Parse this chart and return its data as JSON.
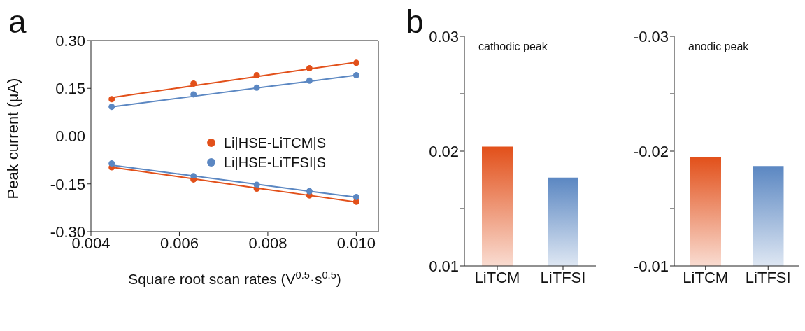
{
  "chart_data": [
    {
      "type": "scatter",
      "xlabel": "Square root scan rates (V$^{0.5}$·s$^{0.5}$)",
      "ylabel": "Peak current (μA)",
      "annotations": [
        "a"
      ],
      "legend": "right",
      "marker": "circle",
      "xlim": [
        0.004,
        0.0105
      ],
      "xticks": [
        {
          "value": 0.004,
          "label": "0.004"
        },
        {
          "value": 0.006,
          "label": "0.006"
        },
        {
          "value": 0.008,
          "label": "0.008"
        },
        {
          "value": 0.01,
          "label": "0.010"
        }
      ],
      "ylim": [
        -0.3,
        0.3
      ],
      "yticks": [
        {
          "value": -0.3,
          "label": "-0.30"
        },
        {
          "value": -0.15,
          "label": "-0.15"
        },
        {
          "value": 0,
          "label": "0.00"
        },
        {
          "value": 0.15,
          "label": "0.15"
        },
        {
          "value": 0.3,
          "label": "0.30"
        }
      ],
      "x": [
        0.00447,
        0.00632,
        0.00775,
        0.00894,
        0.01
      ],
      "series": [
        {
          "name": "Li|HSE-LiTCM|S",
          "color": "#e2501a",
          "values": [
            0.116,
            0.165,
            0.191,
            0.213,
            0.23
          ]
        },
        {
          "name": "Li|HSE-LiTFSI|S",
          "color": "#5b87c2",
          "values": [
            0.092,
            0.131,
            0.152,
            0.174,
            0.191
          ]
        },
        {
          "color": "#e2501a",
          "values": [
            -0.098,
            -0.136,
            -0.165,
            -0.186,
            -0.206
          ]
        },
        {
          "color": "#5b87c2",
          "values": [
            -0.086,
            -0.126,
            -0.153,
            -0.173,
            -0.191
          ]
        },
        {
          "type": "line",
          "marker": "none",
          "color": "#e2501a",
          "values": [
            0.121,
            0.158,
            0.187,
            0.211,
            0.232
          ]
        },
        {
          "type": "line",
          "marker": "none",
          "color": "#5b87c2",
          "values": [
            0.092,
            0.125,
            0.151,
            0.172,
            0.191
          ]
        },
        {
          "type": "line",
          "marker": "none",
          "color": "#e2501a",
          "values": [
            -0.098,
            -0.134,
            -0.163,
            -0.186,
            -0.207
          ]
        },
        {
          "type": "line",
          "marker": "none",
          "color": "#5b87c2",
          "values": [
            -0.091,
            -0.125,
            -0.151,
            -0.173,
            -0.192
          ]
        }
      ]
    },
    {
      "type": "bar",
      "title": "cathodic peak",
      "annotations": [
        "b"
      ],
      "categories": [
        "LiTCM",
        "LiTFSI"
      ],
      "values": [
        0.0204,
        0.0177
      ],
      "colors": [
        "#e2501a",
        "#5b87c2"
      ],
      "ylim": [
        0.01,
        0.03
      ],
      "yticks": [
        0.01,
        {
          "value": 0.015,
          "label": null
        },
        0.02,
        {
          "value": 0.025,
          "label": null
        },
        0.03
      ]
    },
    {
      "type": "bar",
      "title": "anodic peak",
      "categories": [
        "LiTCM",
        "LiTFSI"
      ],
      "values": [
        -0.0195,
        -0.0187
      ],
      "colors": [
        "#e2501a",
        "#5b87c2"
      ],
      "ylim": [
        -0.01,
        -0.03
      ],
      "yticks": [
        -0.01,
        {
          "value": -0.015,
          "label": null
        },
        -0.02,
        {
          "value": -0.025,
          "label": null
        },
        -0.03
      ]
    }
  ]
}
